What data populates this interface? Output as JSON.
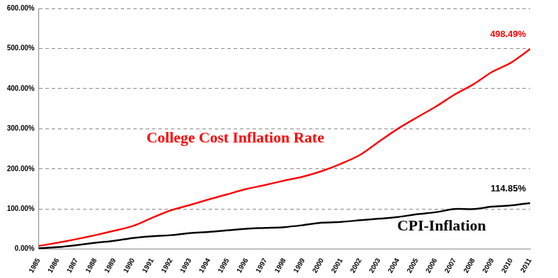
{
  "chart_data": {
    "type": "line",
    "categories": [
      "1985",
      "1986",
      "1987",
      "1988",
      "1989",
      "1990",
      "1991",
      "1992",
      "1993",
      "1994",
      "1995",
      "1996",
      "1997",
      "1998",
      "1999",
      "2000",
      "2001",
      "2002",
      "2003",
      "2004",
      "2005",
      "2006",
      "2007",
      "2008",
      "2009",
      "2010",
      "2011"
    ],
    "series": [
      {
        "name": "College Cost Inflation Rate",
        "color": "#ff0000",
        "marker": "none",
        "line_style": "solid",
        "values": [
          8,
          16,
          25,
          35,
          46,
          58,
          78,
          97,
          110,
          124,
          137,
          150,
          160,
          171,
          181,
          195,
          213,
          235,
          268,
          300,
          328,
          355,
          385,
          411,
          442,
          465,
          498.49
        ],
        "value_labels": [
          null,
          null,
          null,
          null,
          null,
          null,
          null,
          null,
          null,
          null,
          null,
          null,
          null,
          null,
          null,
          null,
          null,
          null,
          null,
          null,
          null,
          null,
          null,
          null,
          null,
          null,
          "498.49%"
        ]
      },
      {
        "name": "CPI-Inflation",
        "color": "#000000",
        "marker": "none",
        "line_style": "solid",
        "values": [
          2,
          5,
          10,
          16,
          21,
          28,
          32,
          35,
          40,
          43,
          47,
          51,
          53,
          55,
          60,
          66,
          68,
          72,
          76,
          80,
          87,
          92,
          100,
          100,
          106,
          109,
          114.85
        ],
        "value_labels": [
          null,
          null,
          null,
          null,
          null,
          null,
          null,
          null,
          null,
          null,
          null,
          null,
          null,
          null,
          null,
          null,
          null,
          null,
          null,
          null,
          null,
          null,
          null,
          null,
          null,
          null,
          "114.85%"
        ]
      }
    ],
    "ylim": [
      0,
      600
    ],
    "yticks": [
      {
        "value": 0,
        "label": "0.00%"
      },
      {
        "value": 100,
        "label": "100.00%"
      },
      {
        "value": 200,
        "label": "200.00%"
      },
      {
        "value": 300,
        "label": "300.00%"
      },
      {
        "value": 400,
        "label": "400.00%"
      },
      {
        "value": 500,
        "label": "500.00%"
      },
      {
        "value": 600,
        "label": "600.00%"
      }
    ],
    "grid": true,
    "data_labels": true
  }
}
